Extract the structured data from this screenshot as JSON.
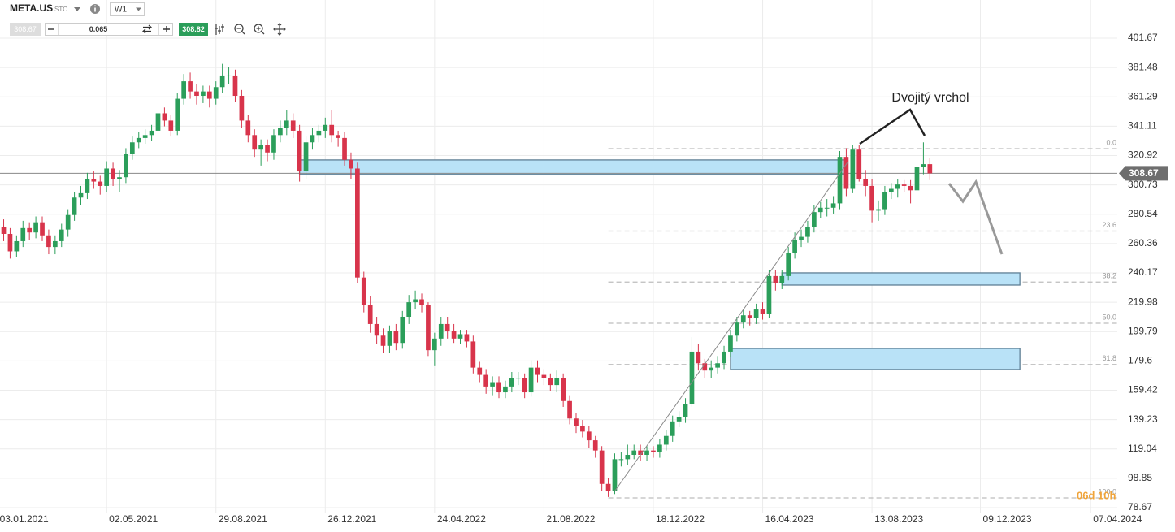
{
  "toolbar": {
    "symbol": "META.US",
    "market": "STC",
    "interval": "W1",
    "bid": 308.67,
    "volume": 0.065,
    "ask": 308.82
  },
  "chart_data": {
    "type": "candlestick",
    "x": [
      "10.01.2021",
      "17.01.2021",
      "24.01.2021",
      "31.01.2021",
      "07.02.2021",
      "14.02.2021",
      "21.02.2021",
      "28.02.2021",
      "07.03.2021",
      "14.03.2021",
      "21.03.2021",
      "28.03.2021",
      "04.04.2021",
      "11.04.2021",
      "18.04.2021",
      "25.04.2021",
      "02.05.2021",
      "09.05.2021",
      "16.05.2021",
      "23.05.2021",
      "30.05.2021",
      "06.06.2021",
      "13.06.2021",
      "20.06.2021",
      "27.06.2021",
      "04.07.2021",
      "11.07.2021",
      "18.07.2021",
      "25.07.2021",
      "01.08.2021",
      "08.08.2021",
      "15.08.2021",
      "22.08.2021",
      "29.08.2021",
      "05.09.2021",
      "12.09.2021",
      "19.09.2021",
      "26.09.2021",
      "03.10.2021",
      "10.10.2021",
      "17.10.2021",
      "24.10.2021",
      "31.10.2021",
      "07.11.2021",
      "14.11.2021",
      "21.11.2021",
      "28.11.2021",
      "05.12.2021",
      "12.12.2021",
      "19.12.2021",
      "26.12.2021",
      "02.01.2022",
      "09.01.2022",
      "16.01.2022",
      "23.01.2022",
      "30.01.2022",
      "06.02.2022",
      "13.02.2022",
      "20.02.2022",
      "27.02.2022",
      "06.03.2022",
      "13.03.2022",
      "20.03.2022",
      "27.03.2022",
      "03.04.2022",
      "10.04.2022",
      "17.04.2022",
      "24.04.2022",
      "01.05.2022",
      "08.05.2022",
      "15.05.2022",
      "22.05.2022",
      "29.05.2022",
      "05.06.2022",
      "12.06.2022",
      "19.06.2022",
      "26.06.2022",
      "03.07.2022",
      "10.07.2022",
      "17.07.2022",
      "24.07.2022",
      "31.07.2022",
      "07.08.2022",
      "14.08.2022",
      "21.08.2022",
      "28.08.2022",
      "04.09.2022",
      "11.09.2022",
      "18.09.2022",
      "25.09.2022",
      "02.10.2022",
      "09.10.2022",
      "16.10.2022",
      "23.10.2022",
      "30.10.2022",
      "06.11.2022",
      "13.11.2022",
      "20.11.2022",
      "27.11.2022",
      "04.12.2022",
      "11.12.2022",
      "18.12.2022",
      "25.12.2022",
      "01.01.2023",
      "08.01.2023",
      "15.01.2023",
      "22.01.2023",
      "29.01.2023",
      "05.02.2023",
      "12.02.2023",
      "19.02.2023",
      "26.02.2023",
      "05.03.2023",
      "12.03.2023",
      "19.03.2023",
      "26.03.2023",
      "02.04.2023",
      "09.04.2023",
      "16.04.2023",
      "23.04.2023",
      "30.04.2023",
      "07.05.2023",
      "14.05.2023",
      "21.05.2023",
      "28.05.2023",
      "04.06.2023",
      "11.06.2023",
      "18.06.2023",
      "25.06.2023",
      "02.07.2023",
      "09.07.2023",
      "16.07.2023",
      "23.07.2023",
      "30.07.2023",
      "06.08.2023",
      "13.08.2023",
      "20.08.2023",
      "27.08.2023",
      "03.09.2023",
      "10.09.2023",
      "17.09.2023",
      "24.09.2023",
      "01.10.2023",
      "08.10.2023",
      "15.10.2023"
    ],
    "open": [
      272,
      267,
      255,
      262,
      271,
      268,
      275,
      266,
      258,
      262,
      270,
      280,
      292,
      295,
      305,
      303,
      300,
      312,
      305,
      306,
      322,
      330,
      333,
      335,
      338,
      350,
      345,
      338,
      360,
      372,
      365,
      362,
      365,
      360,
      368,
      376,
      376,
      362,
      345,
      335,
      325,
      328,
      323,
      335,
      340,
      345,
      338,
      310,
      330,
      335,
      338,
      342,
      335,
      333,
      318,
      312,
      237,
      218,
      205,
      197,
      190,
      200,
      192,
      210,
      220,
      222,
      218,
      187,
      195,
      205,
      200,
      195,
      198,
      193,
      175,
      170,
      162,
      165,
      158,
      162,
      168,
      168,
      158,
      175,
      170,
      168,
      163,
      168,
      152,
      140,
      135,
      131,
      125,
      118,
      95,
      90,
      112,
      112,
      115,
      118,
      115,
      118,
      117,
      122,
      128,
      138,
      141,
      150,
      186,
      178,
      173,
      175,
      178,
      186,
      197,
      206,
      211,
      209,
      215,
      212,
      238,
      233,
      238,
      254,
      263,
      265,
      272,
      282,
      285,
      285,
      288,
      320,
      298,
      325,
      305,
      300,
      283,
      284,
      296,
      298,
      301,
      300,
      297,
      313,
      315
    ],
    "high": [
      277,
      271,
      266,
      276,
      275,
      279,
      279,
      270,
      266,
      274,
      284,
      296,
      300,
      309,
      310,
      307,
      317,
      316,
      311,
      326,
      334,
      337,
      339,
      342,
      355,
      354,
      349,
      364,
      377,
      378,
      370,
      369,
      369,
      372,
      384,
      382,
      380,
      366,
      349,
      339,
      332,
      332,
      339,
      345,
      352,
      350,
      342,
      334,
      340,
      342,
      347,
      352,
      338,
      337,
      323,
      316,
      241,
      224,
      210,
      202,
      204,
      205,
      214,
      225,
      228,
      226,
      220,
      199,
      210,
      210,
      205,
      201,
      201,
      197,
      179,
      174,
      169,
      169,
      166,
      172,
      172,
      171,
      180,
      180,
      174,
      171,
      173,
      171,
      156,
      144,
      139,
      135,
      128,
      121,
      99,
      116,
      117,
      122,
      122,
      122,
      121,
      121,
      126,
      132,
      142,
      145,
      154,
      196,
      191,
      181,
      180,
      183,
      190,
      201,
      210,
      215,
      214,
      219,
      220,
      242,
      242,
      242,
      258,
      268,
      270,
      276,
      287,
      289,
      291,
      293,
      324,
      326,
      328,
      328,
      311,
      305,
      290,
      300,
      302,
      305,
      304,
      304,
      317,
      330,
      319
    ],
    "low": [
      262,
      250,
      251,
      258,
      263,
      264,
      262,
      253,
      253,
      258,
      265,
      276,
      287,
      291,
      298,
      294,
      296,
      300,
      296,
      302,
      318,
      326,
      329,
      331,
      334,
      341,
      334,
      335,
      356,
      360,
      356,
      357,
      354,
      356,
      364,
      370,
      358,
      340,
      330,
      320,
      314,
      317,
      318,
      330,
      335,
      333,
      303,
      305,
      325,
      330,
      333,
      330,
      327,
      314,
      305,
      233,
      213,
      199,
      191,
      185,
      185,
      187,
      188,
      205,
      215,
      213,
      183,
      176,
      190,
      195,
      192,
      191,
      189,
      171,
      165,
      157,
      156,
      154,
      154,
      158,
      163,
      154,
      155,
      165,
      163,
      159,
      158,
      148,
      136,
      130,
      127,
      120,
      113,
      90,
      86,
      88,
      107,
      108,
      112,
      111,
      111,
      113,
      113,
      118,
      124,
      134,
      137,
      148,
      173,
      168,
      168,
      171,
      174,
      182,
      193,
      202,
      204,
      205,
      208,
      209,
      228,
      229,
      235,
      250,
      258,
      261,
      268,
      278,
      279,
      281,
      284,
      293,
      295,
      303,
      293,
      275,
      276,
      280,
      291,
      292,
      296,
      288,
      293,
      308,
      304
    ],
    "close": [
      267,
      255,
      262,
      271,
      268,
      275,
      266,
      258,
      262,
      270,
      280,
      292,
      295,
      305,
      303,
      300,
      312,
      305,
      306,
      322,
      330,
      333,
      335,
      338,
      350,
      345,
      338,
      360,
      372,
      365,
      362,
      365,
      360,
      368,
      376,
      376,
      362,
      345,
      335,
      325,
      328,
      323,
      335,
      340,
      345,
      338,
      310,
      330,
      335,
      338,
      342,
      335,
      333,
      318,
      312,
      237,
      218,
      205,
      197,
      190,
      200,
      192,
      210,
      220,
      222,
      218,
      187,
      195,
      205,
      200,
      195,
      198,
      193,
      175,
      170,
      162,
      165,
      158,
      162,
      168,
      168,
      158,
      175,
      170,
      168,
      163,
      168,
      152,
      140,
      135,
      131,
      125,
      118,
      95,
      90,
      112,
      112,
      115,
      118,
      115,
      118,
      117,
      122,
      128,
      138,
      141,
      150,
      186,
      178,
      173,
      175,
      178,
      186,
      197,
      206,
      211,
      209,
      215,
      212,
      238,
      233,
      238,
      254,
      263,
      265,
      272,
      282,
      285,
      285,
      288,
      320,
      298,
      325,
      305,
      300,
      283,
      284,
      296,
      298,
      301,
      300,
      297,
      313,
      315,
      308.67
    ],
    "up_color": "#2b9e5a",
    "down_color": "#d8344b",
    "xlim": [
      "06.01.2021",
      "06.05.2024"
    ],
    "xticks": [
      "03.01.2021",
      "02.05.2021",
      "29.08.2021",
      "26.12.2021",
      "24.04.2022",
      "21.08.2022",
      "18.12.2022",
      "16.04.2023",
      "13.08.2023",
      "09.12.2023",
      "07.04.2024"
    ],
    "ylim": [
      75.88,
      422.35
    ],
    "yticks": [
      78.67,
      98.85,
      119.04,
      139.23,
      159.42,
      179.6,
      199.79,
      219.98,
      240.17,
      260.36,
      280.54,
      300.73,
      320.92,
      341.11,
      361.29,
      381.48,
      401.67
    ],
    "grid": true,
    "last_price": 308.67,
    "fib": {
      "start": "30.10.2022",
      "levels": [
        {
          "label": "0.0",
          "price": 325.67
        },
        {
          "label": "23.6",
          "price": 268.96
        },
        {
          "label": "38.2",
          "price": 233.88
        },
        {
          "label": "50.0",
          "price": 205.52
        },
        {
          "label": "61.8",
          "price": 177.16
        },
        {
          "label": "100.0",
          "price": 85.37
        }
      ]
    },
    "zones": [
      {
        "start": "28.11.2021",
        "end": "16.07.2023",
        "low": 307.9,
        "high": 317.9
      },
      {
        "start": "07.05.2023",
        "end": "21.01.2024",
        "low": 231.8,
        "high": 240.2
      },
      {
        "start": "12.03.2023",
        "end": "21.01.2024",
        "low": 173.7,
        "high": 188.2
      }
    ],
    "annotation": "Dvojitý vrchol",
    "countdown": "06d 10h"
  }
}
